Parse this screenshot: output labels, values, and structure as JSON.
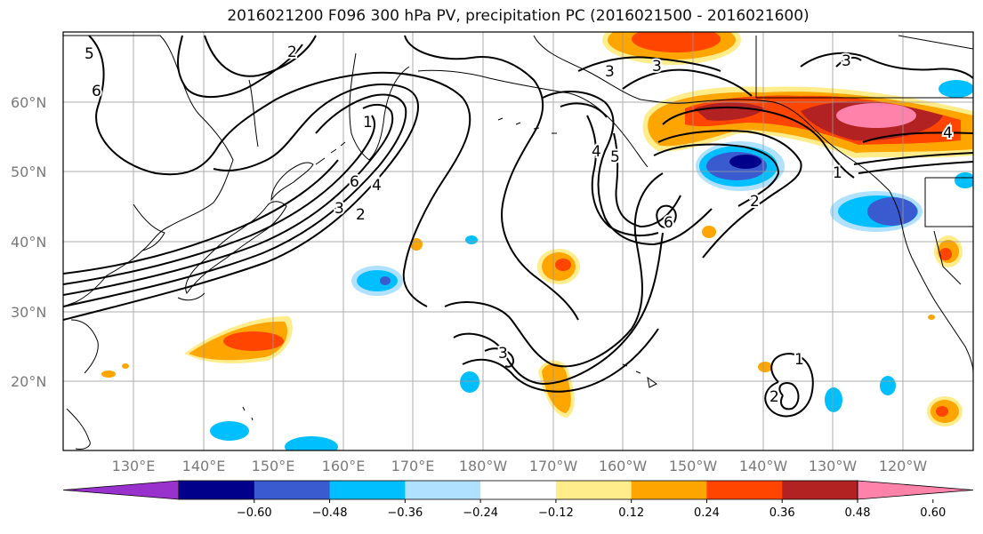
{
  "title": "2016021200 F096 300 hPa PV, precipitation PC (2016021500 - 2016021600)",
  "lat_labels": [
    "60°N",
    "50°N",
    "40°N",
    "30°N",
    "20°N"
  ],
  "lon_labels": [
    "130°E",
    "140°E",
    "150°E",
    "160°E",
    "170°E",
    "180°W",
    "170°W",
    "160°W",
    "150°W",
    "140°W",
    "130°W",
    "120°W"
  ],
  "colorbar": {
    "ticks": [
      "−0.60",
      "−0.48",
      "−0.36",
      "−0.24",
      "−0.12",
      "0.12",
      "0.24",
      "0.36",
      "0.48",
      "0.60"
    ],
    "colors": [
      "#9932cc",
      "#00008b",
      "#3a5bd0",
      "#00bfff",
      "#b0e2ff",
      "#ffffff",
      "#ffec8b",
      "#ffa500",
      "#ff4500",
      "#b22222",
      "#ff82ab"
    ]
  },
  "contour_labels": [
    "5",
    "6",
    "2",
    "3",
    "3",
    "3",
    "1",
    "6",
    "4",
    "3",
    "2",
    "4",
    "5",
    "6",
    "2",
    "3",
    "1",
    "4",
    "1",
    "2"
  ],
  "colors": {
    "contour": "#000000",
    "grid": "#999999",
    "axis_label": "#7a7a7a"
  }
}
